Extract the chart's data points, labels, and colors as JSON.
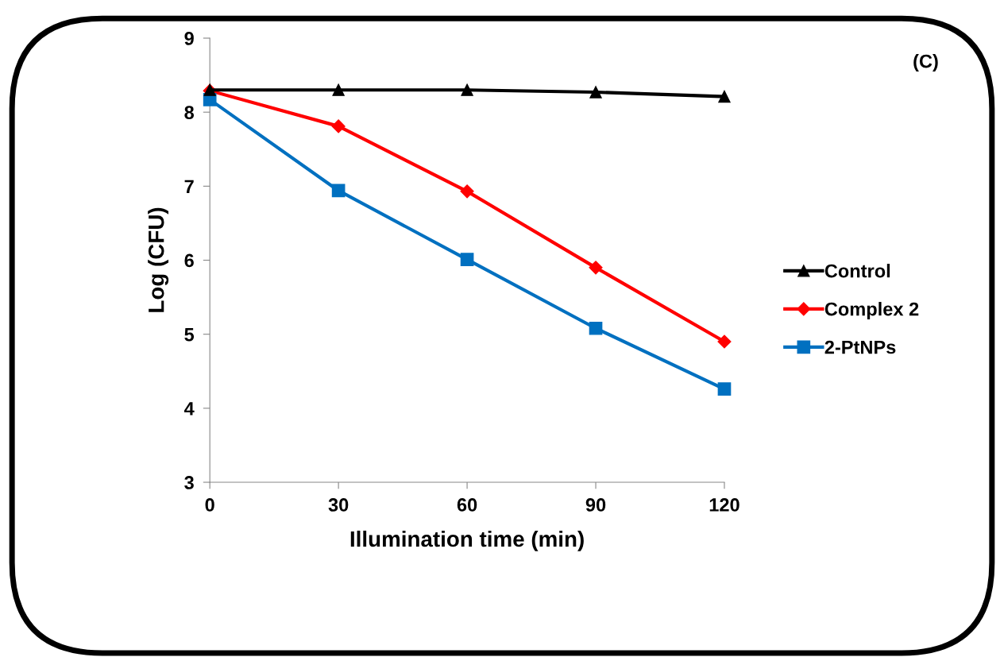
{
  "chart_data": {
    "type": "line",
    "xlabel": "Illumination time (min)",
    "ylabel": "Log (CFU)",
    "annotations": [
      "(C)"
    ],
    "x": [
      0,
      30,
      60,
      90,
      120
    ],
    "xlim": [
      0,
      120
    ],
    "xticks": [
      0,
      30,
      60,
      90,
      120
    ],
    "ylim": [
      3,
      9
    ],
    "yticks": [
      3,
      4,
      5,
      6,
      7,
      8,
      9
    ],
    "grid": false,
    "legend": "right",
    "line_style": "solid",
    "series": [
      {
        "name": "Control",
        "color": "#000000",
        "marker": "triangle",
        "values": [
          8.3,
          8.3,
          8.3,
          8.27,
          8.21
        ]
      },
      {
        "name": "Complex 2",
        "color": "#ff0000",
        "marker": "diamond",
        "values": [
          8.29,
          7.81,
          6.93,
          5.9,
          4.9
        ]
      },
      {
        "name": "2-PtNPs",
        "color": "#0070c0",
        "marker": "square",
        "values": [
          8.17,
          6.94,
          6.01,
          5.08,
          4.26
        ]
      }
    ]
  }
}
